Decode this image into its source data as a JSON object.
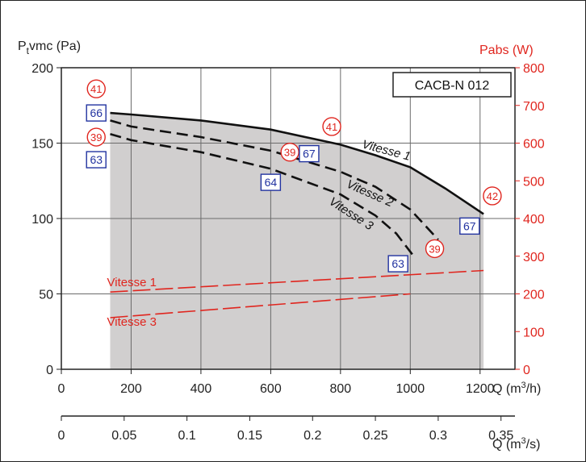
{
  "chart_data": {
    "type": "line",
    "model": "CACB-N 012",
    "y_left": {
      "label_main": "P",
      "label_sub": "t",
      "label_rest": "vmc (Pa)",
      "min": 0,
      "max": 200,
      "ticks": [
        "0",
        "50",
        "100",
        "150",
        "200"
      ]
    },
    "y_right": {
      "label": "Pabs (W)",
      "min": 0,
      "max": 800,
      "ticks": [
        "0",
        "100",
        "200",
        "300",
        "400",
        "500",
        "600",
        "700",
        "800"
      ]
    },
    "x_top": {
      "label_pre": "Q (m",
      "label_sup": "3",
      "label_post": "/h)",
      "min": 0,
      "max": 1300,
      "ticks": [
        "0",
        "200",
        "400",
        "600",
        "800",
        "1000",
        "1200"
      ]
    },
    "x_bottom": {
      "label_pre": "Q (m",
      "label_sup": "3",
      "label_post": "/s)",
      "ticks": [
        "0",
        "0.05",
        "0.1",
        "0.15",
        "0.2",
        "0.25",
        "0.3",
        "0.35"
      ]
    },
    "grid": true,
    "operating_area": {
      "x": [
        140,
        200,
        400,
        600,
        800,
        1000,
        1210,
        1210,
        140
      ],
      "y": [
        170,
        169,
        165,
        159,
        149,
        134,
        103,
        0,
        0
      ]
    },
    "pressure_series": [
      {
        "name": "Vitesse 1",
        "label": "Vitesse 1",
        "style": "solid",
        "x": [
          140,
          200,
          400,
          600,
          800,
          900,
          1000,
          1100,
          1210
        ],
        "y": [
          170,
          169,
          165,
          159,
          149,
          142,
          134,
          120,
          103
        ]
      },
      {
        "name": "Vitesse 2",
        "label": "Vitesse 2",
        "style": "dashed",
        "x": [
          140,
          200,
          400,
          600,
          800,
          900,
          1000,
          1080
        ],
        "y": [
          165,
          161,
          154,
          145,
          131,
          121,
          106,
          86
        ]
      },
      {
        "name": "Vitesse 3",
        "label": "Vitesse 3",
        "style": "dashed",
        "x": [
          140,
          200,
          400,
          600,
          800,
          900,
          960,
          1010
        ],
        "y": [
          156,
          152,
          144,
          133,
          116,
          102,
          90,
          75
        ]
      }
    ],
    "power_series": [
      {
        "name": "Vitesse 1",
        "label": "Vitesse 1",
        "axis": "right",
        "x": [
          140,
          1210
        ],
        "y": [
          205,
          262
        ]
      },
      {
        "name": "Vitesse 3",
        "label": "Vitesse 3",
        "axis": "right",
        "x": [
          140,
          1000
        ],
        "y": [
          137,
          200
        ]
      }
    ],
    "annotations": [
      {
        "kind": "power",
        "text": "41",
        "x": 100,
        "y": 186
      },
      {
        "kind": "power",
        "text": "39",
        "x": 100,
        "y": 154
      },
      {
        "kind": "acoustic",
        "text": "66",
        "x": 100,
        "y": 170
      },
      {
        "kind": "acoustic",
        "text": "63",
        "x": 100,
        "y": 139
      },
      {
        "kind": "power",
        "text": "41",
        "x": 775,
        "y": 161
      },
      {
        "kind": "power",
        "text": "39",
        "x": 655,
        "y": 144
      },
      {
        "kind": "acoustic",
        "text": "67",
        "x": 710,
        "y": 143
      },
      {
        "kind": "acoustic",
        "text": "64",
        "x": 600,
        "y": 124
      },
      {
        "kind": "power",
        "text": "42",
        "x": 1235,
        "y": 115
      },
      {
        "kind": "acoustic",
        "text": "67",
        "x": 1170,
        "y": 95
      },
      {
        "kind": "acoustic",
        "text": "63",
        "x": 965,
        "y": 70
      },
      {
        "kind": "power",
        "text": "39",
        "x": 1070,
        "y": 80
      }
    ]
  }
}
